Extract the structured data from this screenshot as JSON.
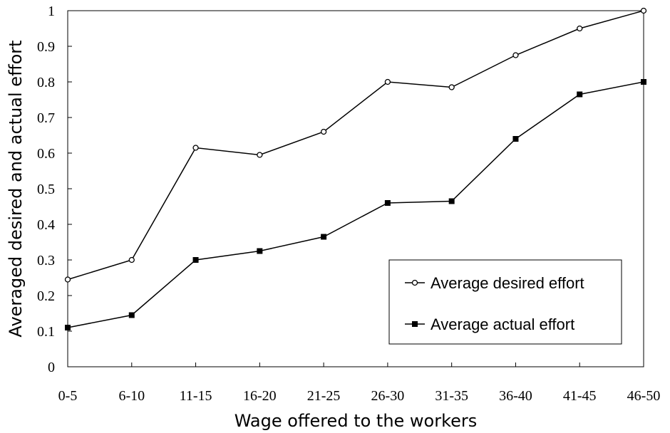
{
  "chart_data": {
    "type": "line",
    "title": "",
    "xlabel": "Wage offered to the workers",
    "ylabel": "Averaged desired and actual effort",
    "categories": [
      "0-5",
      "6-10",
      "11-15",
      "16-20",
      "21-25",
      "26-30",
      "31-35",
      "36-40",
      "41-45",
      "46-50"
    ],
    "ylim": [
      0,
      1
    ],
    "yticks": [
      "0",
      "0.1",
      "0.2",
      "0.3",
      "0.4",
      "0.5",
      "0.6",
      "0.7",
      "0.8",
      "0.9",
      "1"
    ],
    "grid": false,
    "legend_position": "bottom-right",
    "series": [
      {
        "name": "Average desired effort",
        "marker": "open-circle",
        "values": [
          0.245,
          0.3,
          0.615,
          0.595,
          0.66,
          0.8,
          0.785,
          0.875,
          0.95,
          1.0
        ]
      },
      {
        "name": "Average actual effort",
        "marker": "filled-square",
        "values": [
          0.11,
          0.145,
          0.3,
          0.325,
          0.365,
          0.46,
          0.465,
          0.64,
          0.765,
          0.8
        ]
      }
    ]
  },
  "colors": {
    "line": "#000000",
    "background": "#ffffff"
  }
}
